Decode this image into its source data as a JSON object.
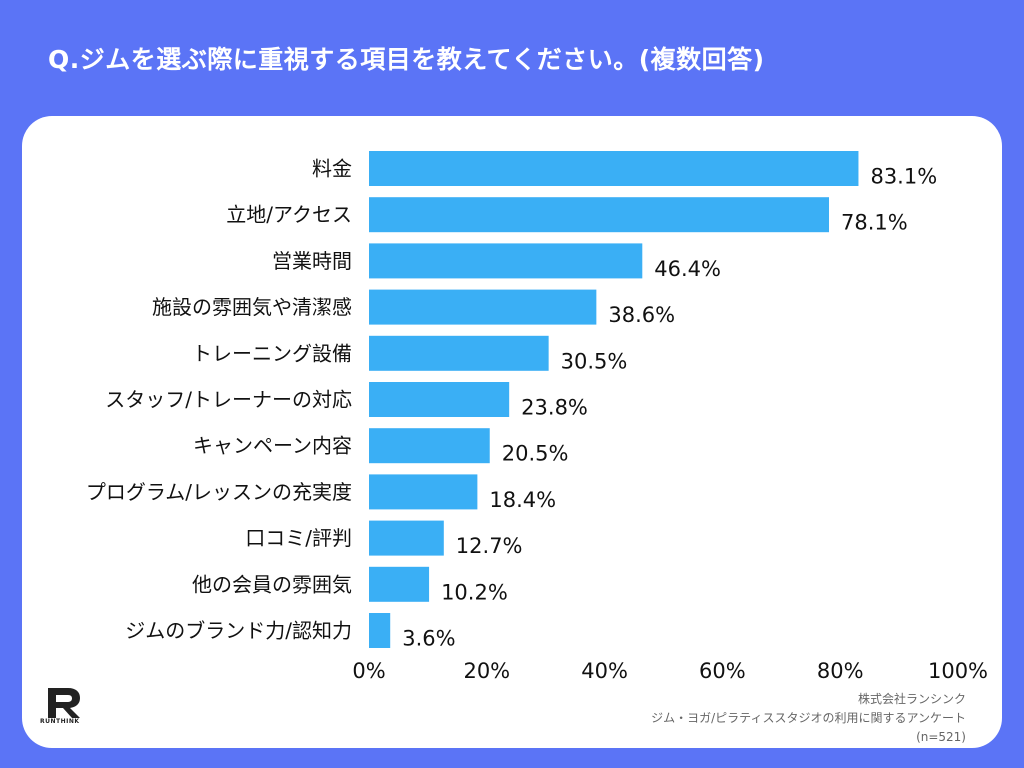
{
  "title": "Q.ジムを選ぶ際に重視する項目を教えてください。(複数回答)",
  "logo": {
    "name": "RUNTHINK"
  },
  "source": {
    "company": "株式会社ランシンク",
    "survey": "ジム・ヨガ/ピラティススタジオの利用に関するアンケート",
    "sample": "(n=521)"
  },
  "colors": {
    "background": "#5b74f6",
    "bar": "#3aaff5",
    "card": "#ffffff"
  },
  "chart_data": {
    "type": "bar",
    "orientation": "horizontal",
    "categories": [
      "料金",
      "立地/アクセス",
      "営業時間",
      "施設の雰囲気や清潔感",
      "トレーニング設備",
      "スタッフ/トレーナーの対応",
      "キャンペーン内容",
      "プログラム/レッスンの充実度",
      "口コミ/評判",
      "他の会員の雰囲気",
      "ジムのブランド力/認知力"
    ],
    "values": [
      83.1,
      78.1,
      46.4,
      38.6,
      30.5,
      23.8,
      20.5,
      18.4,
      12.7,
      10.2,
      3.6
    ],
    "value_labels": [
      "83.1%",
      "78.1%",
      "46.4%",
      "38.6%",
      "30.5%",
      "23.8%",
      "20.5%",
      "18.4%",
      "12.7%",
      "10.2%",
      "3.6%"
    ],
    "xlim": [
      0,
      100
    ],
    "xticks": [
      "0%",
      "20%",
      "40%",
      "60%",
      "80%",
      "100%"
    ],
    "grid": false
  }
}
